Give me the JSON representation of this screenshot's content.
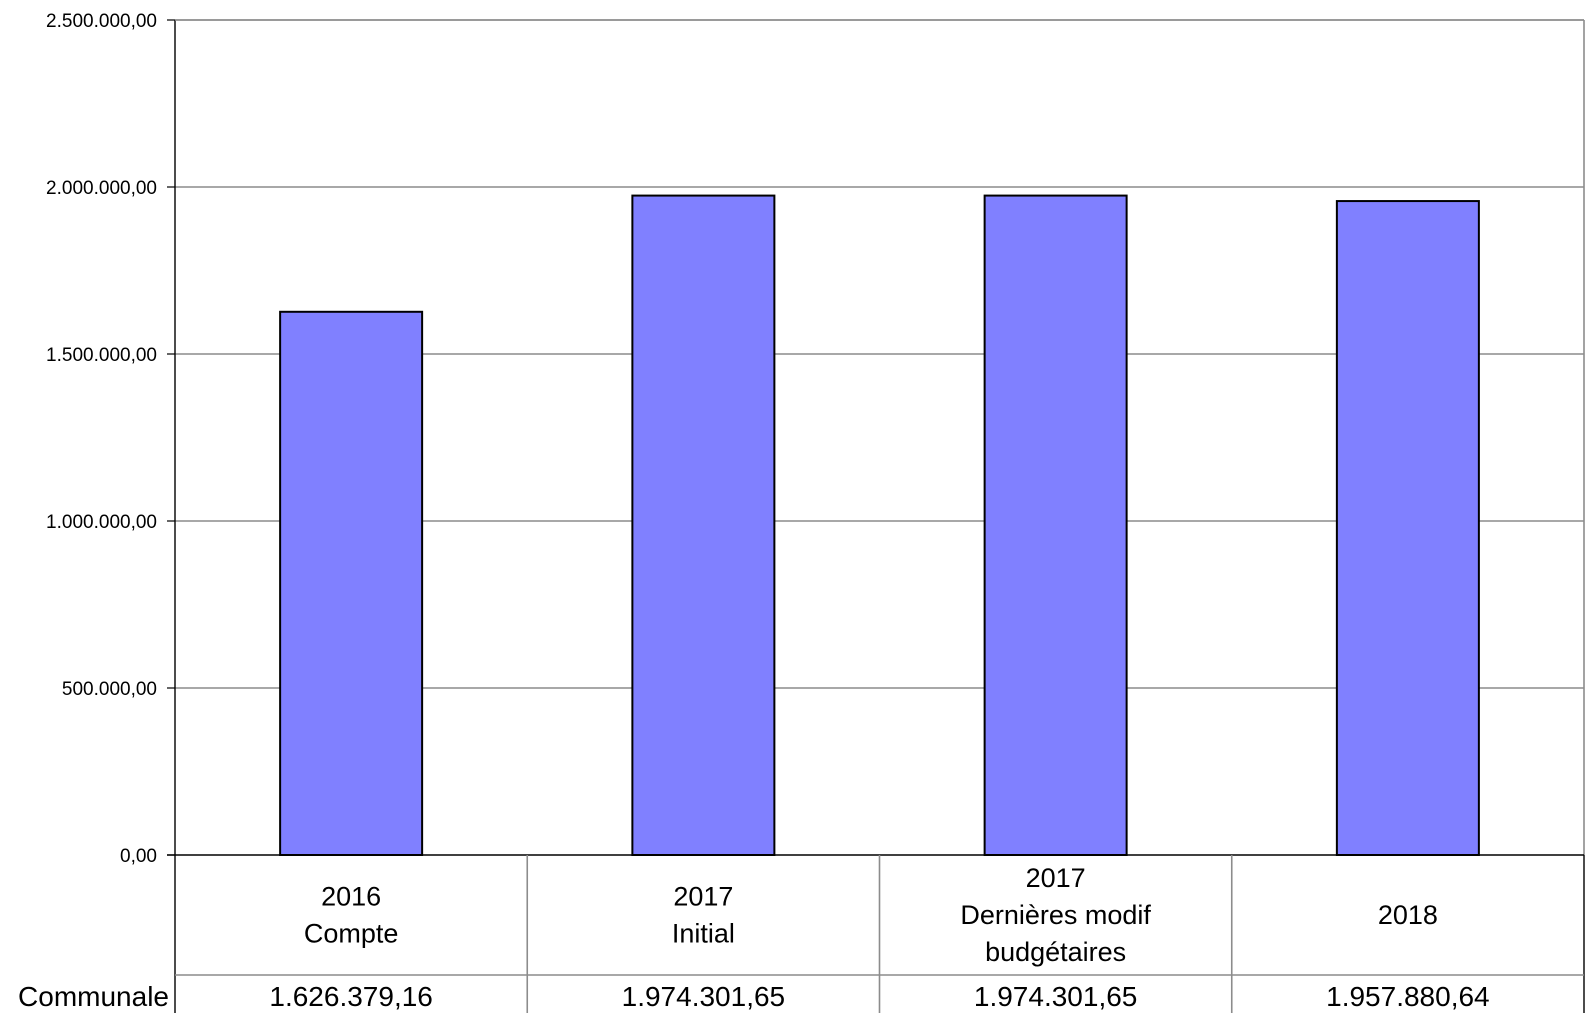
{
  "chart_data": {
    "type": "bar",
    "categories": [
      [
        "2016",
        "Compte"
      ],
      [
        "2017",
        "Initial"
      ],
      [
        "2017",
        "Dernières modif",
        "budgétaires"
      ],
      [
        "2018"
      ]
    ],
    "series": [
      {
        "name": "Communale",
        "values": [
          1626379.16,
          1974301.65,
          1974301.65,
          1957880.64
        ],
        "value_labels": [
          "1.626.379,16",
          "1.974.301,65",
          "1.974.301,65",
          "1.957.880,64"
        ],
        "color": "#8080ff"
      }
    ],
    "ylim": [
      0,
      2500000
    ],
    "yticks": [
      0,
      500000,
      1000000,
      1500000,
      2000000,
      2500000
    ],
    "ytick_labels": [
      "0,00",
      "500.000,00",
      "1.000.000,00",
      "1.500.000,00",
      "2.000.000,00",
      "2.500.000,00"
    ],
    "grid": true,
    "legend": "data-table",
    "title": "",
    "xlabel": "",
    "ylabel": ""
  }
}
